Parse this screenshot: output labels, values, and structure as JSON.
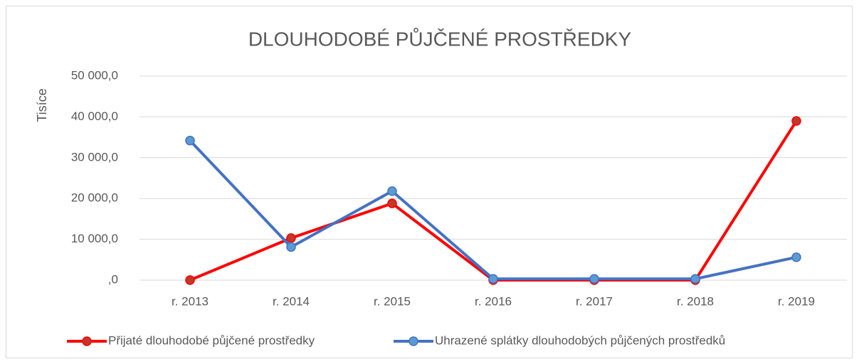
{
  "chart_data": {
    "type": "line",
    "title": "DLOUHODOBÉ PŮJČENÉ PROSTŘEDKY",
    "ylabel": "Tisíce",
    "categories": [
      "r. 2013",
      "r. 2014",
      "r. 2015",
      "r. 2016",
      "r. 2017",
      "r. 2018",
      "r. 2019"
    ],
    "series": [
      {
        "name": "Přijaté dlouhodobé půjčené prostředky",
        "color": "#ff0000",
        "marker_color": "#c0392b",
        "values": [
          0,
          10300,
          18800,
          0,
          0,
          0,
          39000
        ]
      },
      {
        "name": "Uhrazené splátky dlouhodobých půjčených prostředků",
        "color": "#4472c4",
        "marker_color": "#5b9bd5",
        "values": [
          34200,
          8100,
          21800,
          300,
          300,
          300,
          5600
        ]
      }
    ],
    "ylim": [
      0,
      50000
    ],
    "yticks": [
      {
        "value": 0,
        "label": ",0"
      },
      {
        "value": 10000,
        "label": "10 000,0"
      },
      {
        "value": 20000,
        "label": "20 000,0"
      },
      {
        "value": 30000,
        "label": "30 000,0"
      },
      {
        "value": 40000,
        "label": "40 000,0"
      },
      {
        "value": 50000,
        "label": "50 000,0"
      }
    ],
    "grid": true,
    "legend": "bottom"
  }
}
